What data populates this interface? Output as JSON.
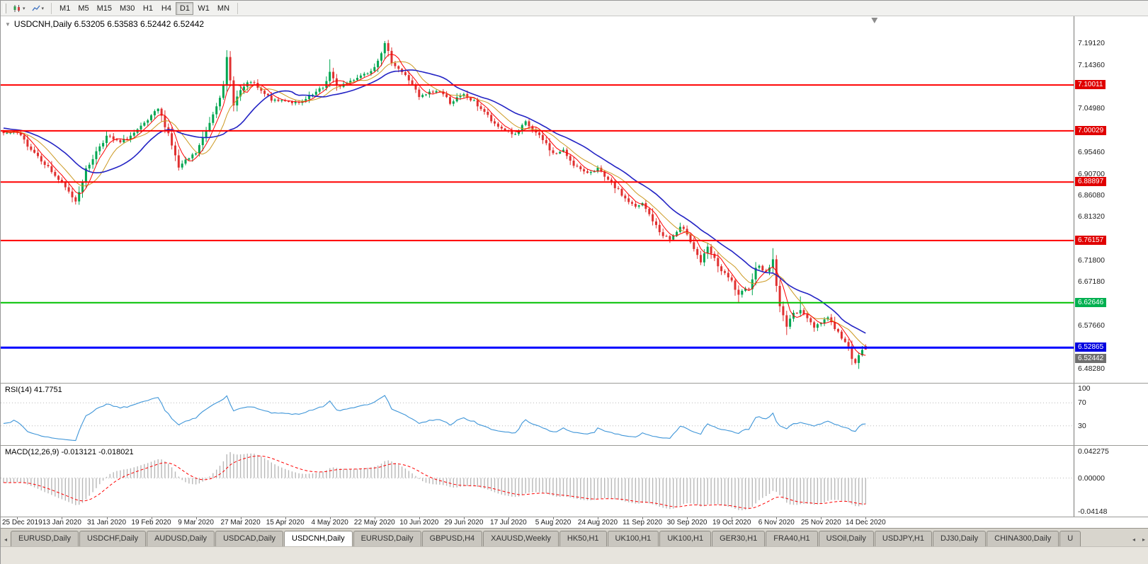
{
  "window": {
    "title": "USDCNH,Daily"
  },
  "toolbar": {
    "timeframes": [
      "M1",
      "M5",
      "M15",
      "M30",
      "H1",
      "H4",
      "D1",
      "W1",
      "MN"
    ],
    "active_timeframe": "D1",
    "icons": [
      "candlestick-chart-icon",
      "line-chart-icon"
    ]
  },
  "header": {
    "ohlc_line": "USDCNH,Daily 6.53205 6.53583 6.52442 6.52442"
  },
  "indicators": {
    "rsi": {
      "label": "RSI(14) 41.7751",
      "period": 14,
      "value": 41.7751,
      "levels": [
        70,
        30
      ],
      "scale_labels": [
        "100",
        "70",
        "30"
      ],
      "color": "#3e95d8"
    },
    "macd": {
      "label": "MACD(12,26,9) -0.013121 -0.018021",
      "params": [
        12,
        26,
        9
      ],
      "macd_value": -0.013121,
      "signal_value": -0.018021,
      "scale_labels": [
        "0.042275",
        "0.00000",
        "-0.04148"
      ],
      "histogram_color": "#b8b8b8",
      "signal_color": "#ff0000"
    }
  },
  "price_scale": {
    "ticks": [
      "7.19120",
      "7.14360",
      "7.04980",
      "6.95460",
      "6.90700",
      "6.86080",
      "6.81320",
      "6.71800",
      "6.67180",
      "6.57660",
      "6.48280"
    ],
    "badges": [
      {
        "value": "7.10011",
        "bg": "#e00000"
      },
      {
        "value": "7.00029",
        "bg": "#e00000"
      },
      {
        "value": "6.88897",
        "bg": "#e00000"
      },
      {
        "value": "6.76157",
        "bg": "#e00000"
      },
      {
        "value": "6.62646",
        "bg": "#00b050"
      },
      {
        "value": "6.52442",
        "bg": "#6f6f6f",
        "offset": 13
      },
      {
        "value": "6.52865",
        "bg": "#0000e0"
      }
    ]
  },
  "x_axis": {
    "labels": [
      "25 Dec 2019",
      "13 Jan 2020",
      "31 Jan 2020",
      "19 Feb 2020",
      "9 Mar 2020",
      "27 Mar 2020",
      "15 Apr 2020",
      "4 May 2020",
      "22 May 2020",
      "10 Jun 2020",
      "29 Jun 2020",
      "17 Jul 2020",
      "5 Aug 2020",
      "24 Aug 2020",
      "11 Sep 2020",
      "30 Sep 2020",
      "19 Oct 2020",
      "6 Nov 2020",
      "25 Nov 2020",
      "14 Dec 2020"
    ]
  },
  "chart_data": {
    "type": "candlestick",
    "symbol": "USDCNH",
    "timeframe": "Daily",
    "last_candle": {
      "open": 6.53205,
      "high": 6.53583,
      "low": 6.52442,
      "close": 6.52442
    },
    "y_range": [
      6.4519,
      7.2497
    ],
    "candle_count": 252,
    "first_label_candle": 4,
    "candles_per_label": 13,
    "x0": 4,
    "dx": 4.85,
    "seed": 7,
    "noise": 0.009,
    "up_color": "#00a651",
    "down_color": "#e03030",
    "close_path": [
      [
        0,
        6.995
      ],
      [
        4,
        6.962
      ],
      [
        8,
        6.93
      ],
      [
        13,
        6.885
      ],
      [
        17,
        6.848
      ],
      [
        20,
        6.915
      ],
      [
        24,
        6.968
      ],
      [
        26,
        6.988
      ],
      [
        30,
        6.974
      ],
      [
        35,
        7.0
      ],
      [
        39,
        7.03
      ],
      [
        41,
        7.048
      ],
      [
        44,
        6.995
      ],
      [
        47,
        6.92
      ],
      [
        50,
        6.94
      ],
      [
        52,
        6.952
      ],
      [
        55,
        7.0
      ],
      [
        58,
        7.058
      ],
      [
        60,
        7.095
      ],
      [
        61,
        7.158
      ],
      [
        63,
        7.06
      ],
      [
        65,
        7.088
      ],
      [
        68,
        7.108
      ],
      [
        71,
        7.085
      ],
      [
        75,
        7.064
      ],
      [
        78,
        7.068
      ],
      [
        82,
        7.058
      ],
      [
        86,
        7.078
      ],
      [
        89,
        7.094
      ],
      [
        91,
        7.128
      ],
      [
        93,
        7.096
      ],
      [
        96,
        7.105
      ],
      [
        99,
        7.118
      ],
      [
        102,
        7.128
      ],
      [
        104,
        7.142
      ],
      [
        107,
        7.188
      ],
      [
        109,
        7.152
      ],
      [
        112,
        7.128
      ],
      [
        115,
        7.103
      ],
      [
        117,
        7.072
      ],
      [
        120,
        7.083
      ],
      [
        123,
        7.088
      ],
      [
        126,
        7.063
      ],
      [
        130,
        7.078
      ],
      [
        133,
        7.063
      ],
      [
        136,
        7.042
      ],
      [
        139,
        7.012
      ],
      [
        143,
        7.0
      ],
      [
        145,
        6.99
      ],
      [
        148,
        7.018
      ],
      [
        151,
        6.995
      ],
      [
        154,
        6.972
      ],
      [
        156,
        6.95
      ],
      [
        159,
        6.956
      ],
      [
        162,
        6.928
      ],
      [
        165,
        6.908
      ],
      [
        169,
        6.918
      ],
      [
        171,
        6.898
      ],
      [
        174,
        6.878
      ],
      [
        177,
        6.853
      ],
      [
        180,
        6.833
      ],
      [
        182,
        6.841
      ],
      [
        184,
        6.818
      ],
      [
        187,
        6.78
      ],
      [
        190,
        6.764
      ],
      [
        193,
        6.788
      ],
      [
        195,
        6.778
      ],
      [
        197,
        6.745
      ],
      [
        199,
        6.715
      ],
      [
        200,
        6.73
      ],
      [
        201,
        6.745
      ],
      [
        203,
        6.72
      ],
      [
        205,
        6.695
      ],
      [
        208,
        6.672
      ],
      [
        210,
        6.64
      ],
      [
        211,
        6.648
      ],
      [
        213,
        6.66
      ],
      [
        215,
        6.7
      ],
      [
        216,
        6.71
      ],
      [
        218,
        6.69
      ],
      [
        220,
        6.72
      ],
      [
        221,
        6.665
      ],
      [
        222,
        6.616
      ],
      [
        224,
        6.578
      ],
      [
        225,
        6.592
      ],
      [
        226,
        6.6
      ],
      [
        228,
        6.614
      ],
      [
        230,
        6.59
      ],
      [
        232,
        6.574
      ],
      [
        234,
        6.585
      ],
      [
        236,
        6.595
      ],
      [
        238,
        6.572
      ],
      [
        240,
        6.55
      ],
      [
        242,
        6.528
      ],
      [
        243,
        6.508
      ],
      [
        244,
        6.498
      ],
      [
        245,
        6.51
      ],
      [
        246,
        6.52
      ],
      [
        247,
        6.52442
      ]
    ],
    "high_overrides": {
      "61": 7.176,
      "91": 7.156,
      "107": 7.196,
      "201": 6.757,
      "220": 6.745,
      "228": 6.64
    },
    "low_overrides": {
      "17": 6.84,
      "47": 6.914,
      "210": 6.627,
      "224": 6.556,
      "244": 6.492
    },
    "moving_averages": [
      {
        "period": 10,
        "color": "#cc9922",
        "width": 1
      },
      {
        "period": 5,
        "color": "#ff0000",
        "width": 1
      },
      {
        "period": 20,
        "color": "#2323c4",
        "width": 1.6
      }
    ],
    "hlines": [
      {
        "price": 7.10011,
        "color": "#ff0000",
        "width": 2
      },
      {
        "price": 7.00029,
        "color": "#ff0000",
        "width": 2
      },
      {
        "price": 6.88897,
        "color": "#ff0000",
        "width": 2
      },
      {
        "price": 6.76157,
        "color": "#ff0000",
        "width": 2
      },
      {
        "price": 6.62646,
        "color": "#00c000",
        "width": 2
      },
      {
        "price": 6.52865,
        "color": "#0000ff",
        "width": 3
      }
    ]
  },
  "tabs": {
    "items": [
      {
        "label": "EURUSD,Daily",
        "active": false
      },
      {
        "label": "USDCHF,Daily",
        "active": false
      },
      {
        "label": "AUDUSD,Daily",
        "active": false
      },
      {
        "label": "USDCAD,Daily",
        "active": false
      },
      {
        "label": "USDCNH,Daily",
        "active": true
      },
      {
        "label": "EURUSD,Daily",
        "active": false
      },
      {
        "label": "GBPUSD,H4",
        "active": false
      },
      {
        "label": "XAUUSD,Weekly",
        "active": false
      },
      {
        "label": "HK50,H1",
        "active": false
      },
      {
        "label": "UK100,H1",
        "active": false
      },
      {
        "label": "UK100,H1",
        "active": false
      },
      {
        "label": "GER30,H1",
        "active": false
      },
      {
        "label": "FRA40,H1",
        "active": false
      },
      {
        "label": "USOil,Daily",
        "active": false
      },
      {
        "label": "USDJPY,H1",
        "active": false
      },
      {
        "label": "DJ30,Daily",
        "active": false
      },
      {
        "label": "CHINA300,Daily",
        "active": false
      },
      {
        "label": "U",
        "active": false
      }
    ]
  }
}
